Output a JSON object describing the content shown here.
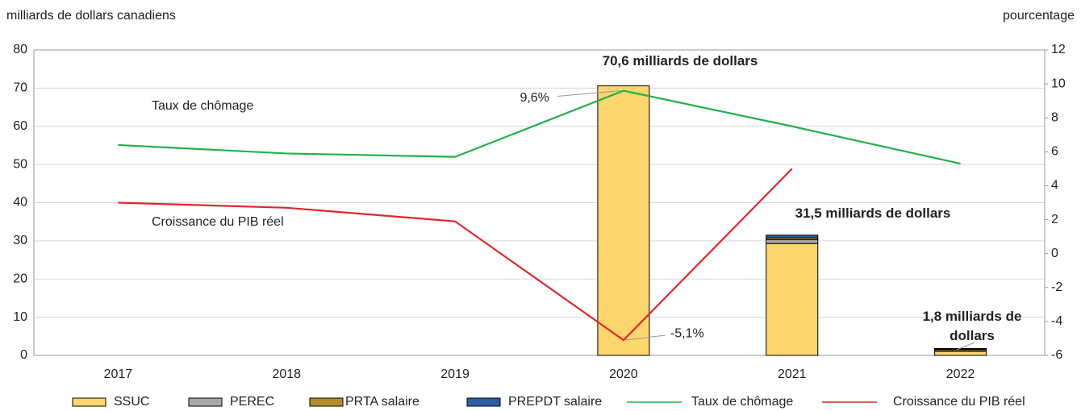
{
  "chart_data": {
    "type": "bar",
    "y_label": "milliards de dollars canadiens",
    "y2_label": "pourcentage",
    "categories": [
      "2017",
      "2018",
      "2019",
      "2020",
      "2021",
      "2022"
    ],
    "ylim": [
      0,
      80
    ],
    "yticks": [
      0,
      10,
      20,
      30,
      40,
      50,
      60,
      70,
      80
    ],
    "y2lim": [
      -6,
      12
    ],
    "y2ticks": [
      -6,
      -4,
      -2,
      0,
      2,
      4,
      6,
      8,
      10,
      12
    ],
    "grid": true,
    "series": [
      {
        "name": "SSUC",
        "type": "bar",
        "color": "#fdd66d",
        "values": [
          null,
          null,
          null,
          70.6,
          29.3,
          1.1
        ]
      },
      {
        "name": "PEREC",
        "type": "bar",
        "color": "#a8a8a8",
        "values": [
          null,
          null,
          null,
          null,
          1.0,
          0.1
        ]
      },
      {
        "name": "PRTA salaire",
        "type": "bar",
        "color": "#b68c2a",
        "values": [
          null,
          null,
          null,
          null,
          0.5,
          0.4
        ]
      },
      {
        "name": "PREPDT salaire",
        "type": "bar",
        "color": "#2f5ea8",
        "values": [
          null,
          null,
          null,
          null,
          0.7,
          0.2
        ]
      },
      {
        "name": "Taux de chômage",
        "type": "line",
        "axis": "y2",
        "color": "#22b04b",
        "values": [
          6.4,
          5.9,
          5.7,
          9.6,
          7.5,
          5.3
        ],
        "value_labels": [
          null,
          null,
          null,
          "9,6%",
          null,
          null
        ]
      },
      {
        "name": "Croissance du PIB réel",
        "type": "line",
        "axis": "y2",
        "color": "#e3262b",
        "values": [
          3.0,
          2.7,
          1.9,
          -5.1,
          5.0,
          null
        ],
        "value_labels": [
          null,
          null,
          null,
          "-5,1%",
          null,
          null
        ]
      }
    ],
    "annotations": [
      "70,6 milliards de dollars",
      "31,5 milliards de dollars",
      "1,8 milliards de dollars"
    ]
  }
}
